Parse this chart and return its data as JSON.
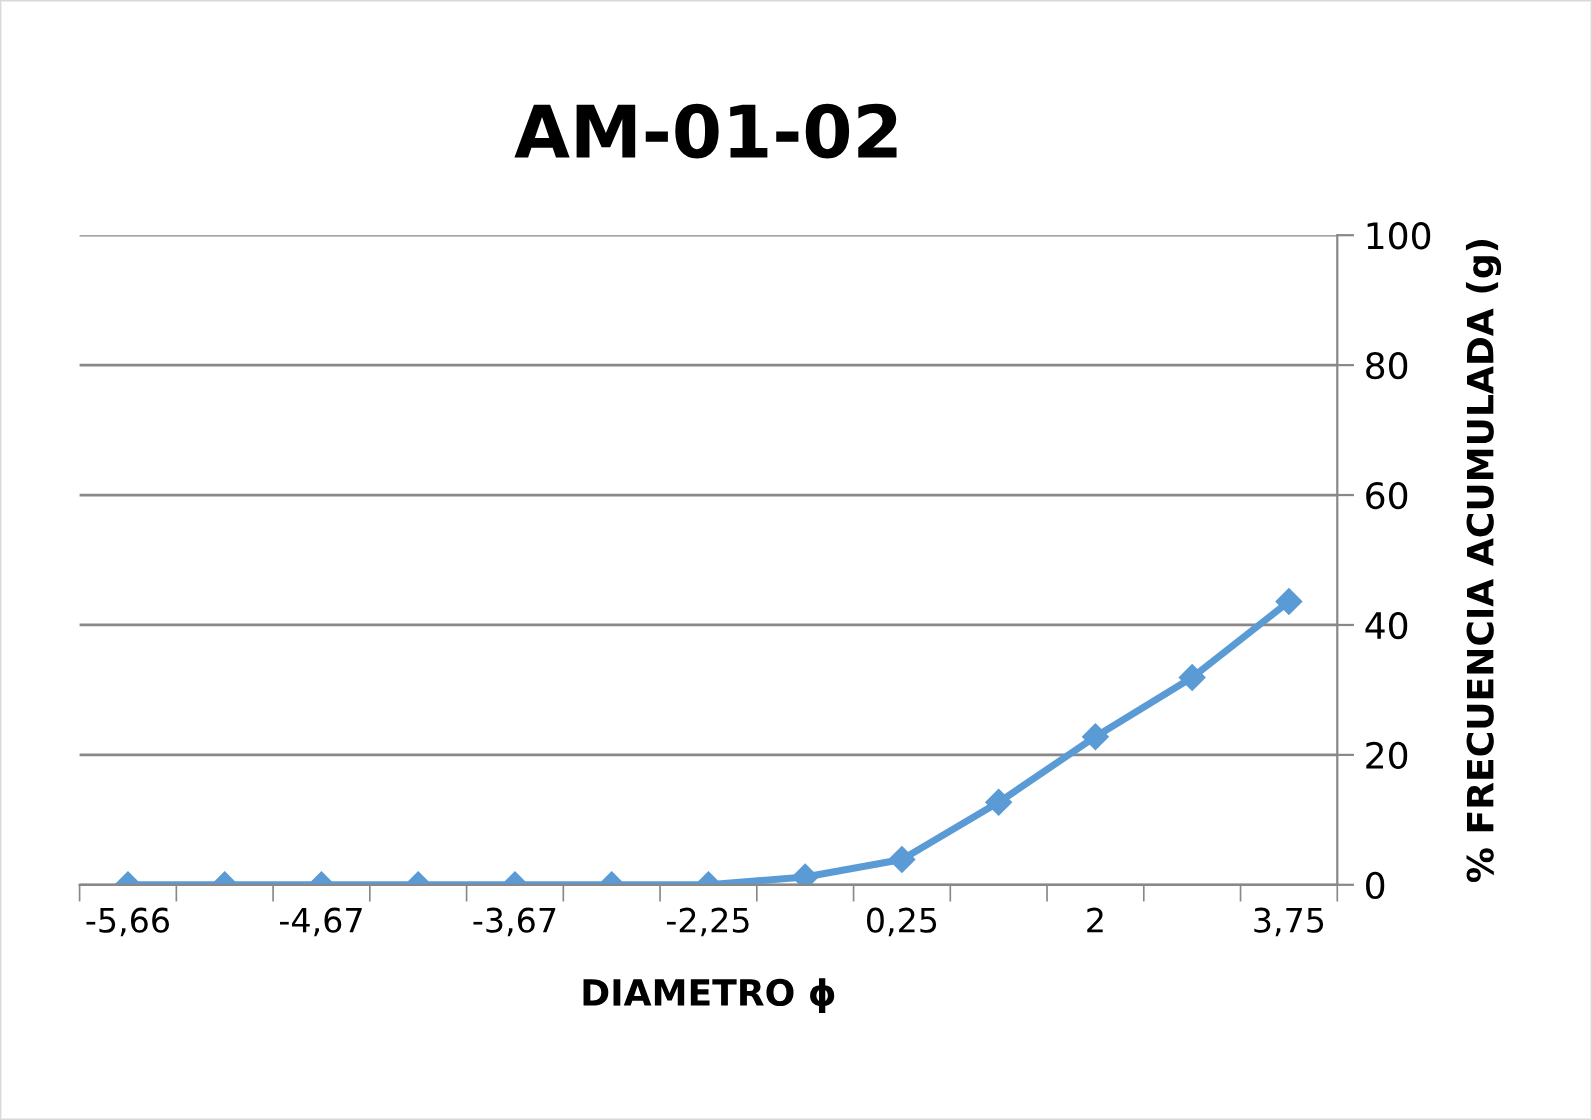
{
  "chart_data": {
    "type": "line",
    "title": "AM-01-02",
    "xlabel": "DIAMETRO ϕ",
    "ylabel": "% FRECUENCIA ACUMULADA (g)",
    "categories": [
      "-5,66",
      null,
      "-4,67",
      null,
      "-3,67",
      null,
      "-2,25",
      null,
      "0,25",
      null,
      "2",
      null,
      "3,75"
    ],
    "series": [
      {
        "color": "#5b9bd5",
        "values": [
          0,
          0,
          0,
          0,
          0,
          0,
          0,
          1.2,
          3.9,
          12.7,
          22.8,
          31.9,
          43.6
        ]
      }
    ],
    "ylim": [
      0,
      100
    ],
    "yticks": [
      0,
      20,
      40,
      60,
      80,
      100
    ],
    "grid": "y",
    "marker": "diamond",
    "line_style": "solid",
    "legend": false
  }
}
